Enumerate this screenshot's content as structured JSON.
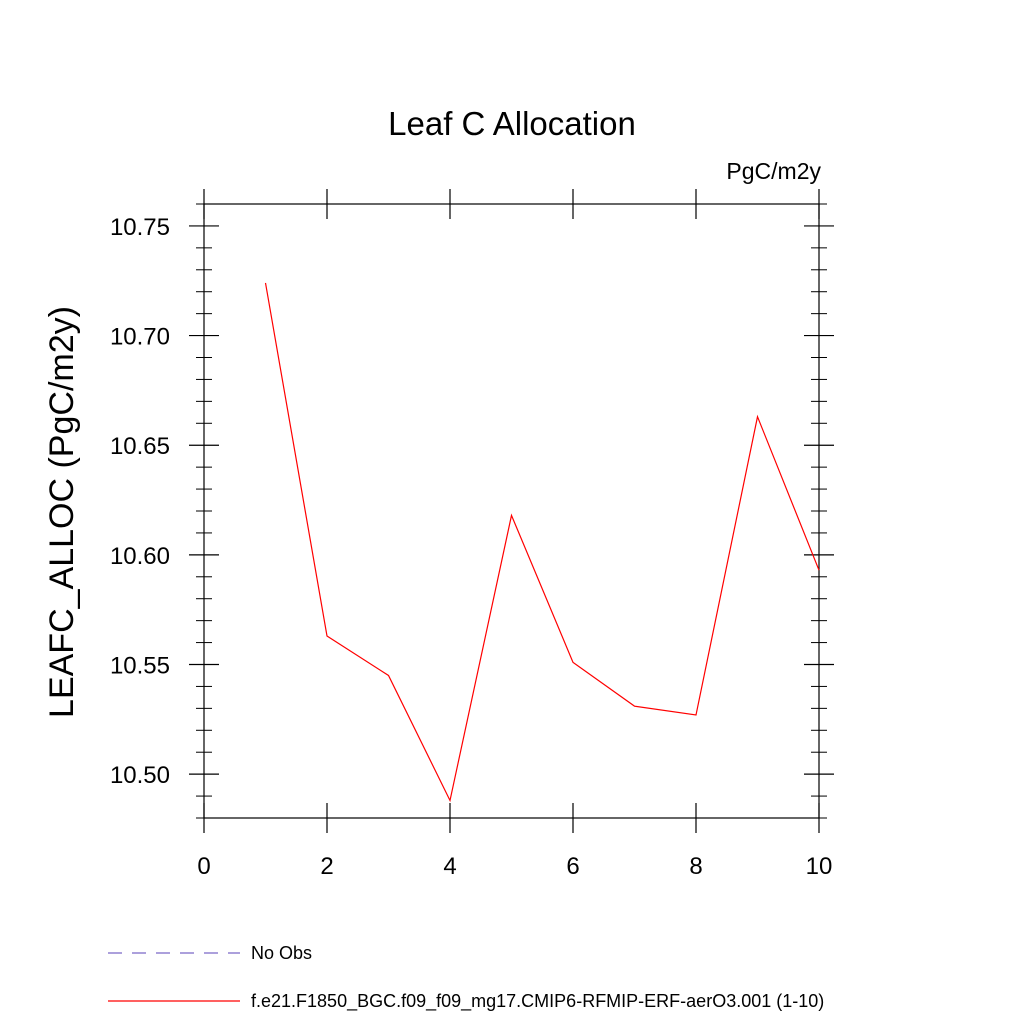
{
  "chart_data": {
    "type": "line",
    "title": "Leaf C Allocation",
    "units": "PgC/m2y",
    "ylabel": "LEAFC_ALLOC  (PgC/m2y)",
    "xlabel": "",
    "xlim": [
      0,
      10
    ],
    "ylim": [
      10.48,
      10.76
    ],
    "xticks": [
      0,
      2,
      4,
      6,
      8,
      10
    ],
    "xtick_labels": [
      "0",
      "2",
      "4",
      "6",
      "8",
      "10"
    ],
    "yticks": [
      10.5,
      10.55,
      10.6,
      10.65,
      10.7,
      10.75
    ],
    "ytick_labels": [
      "10.50",
      "10.55",
      "10.60",
      "10.65",
      "10.70",
      "10.75"
    ],
    "grid": false,
    "series": [
      {
        "name": "f.e21.F1850_BGC.f09_f09_mg17.CMIP6-RFMIP-ERF-aerO3.001 (1-10)",
        "color": "#ff0000",
        "style": "solid",
        "x": [
          1,
          2,
          3,
          4,
          5,
          6,
          7,
          8,
          9,
          10
        ],
        "y": [
          10.724,
          10.563,
          10.545,
          10.488,
          10.618,
          10.551,
          10.531,
          10.527,
          10.663,
          10.593
        ]
      }
    ],
    "legend": [
      {
        "label": "No Obs",
        "color": "#7b68c8",
        "style": "dashed"
      },
      {
        "label": "f.e21.F1850_BGC.f09_f09_mg17.CMIP6-RFMIP-ERF-aerO3.001 (1-10)",
        "color": "#ff0000",
        "style": "solid"
      }
    ]
  }
}
